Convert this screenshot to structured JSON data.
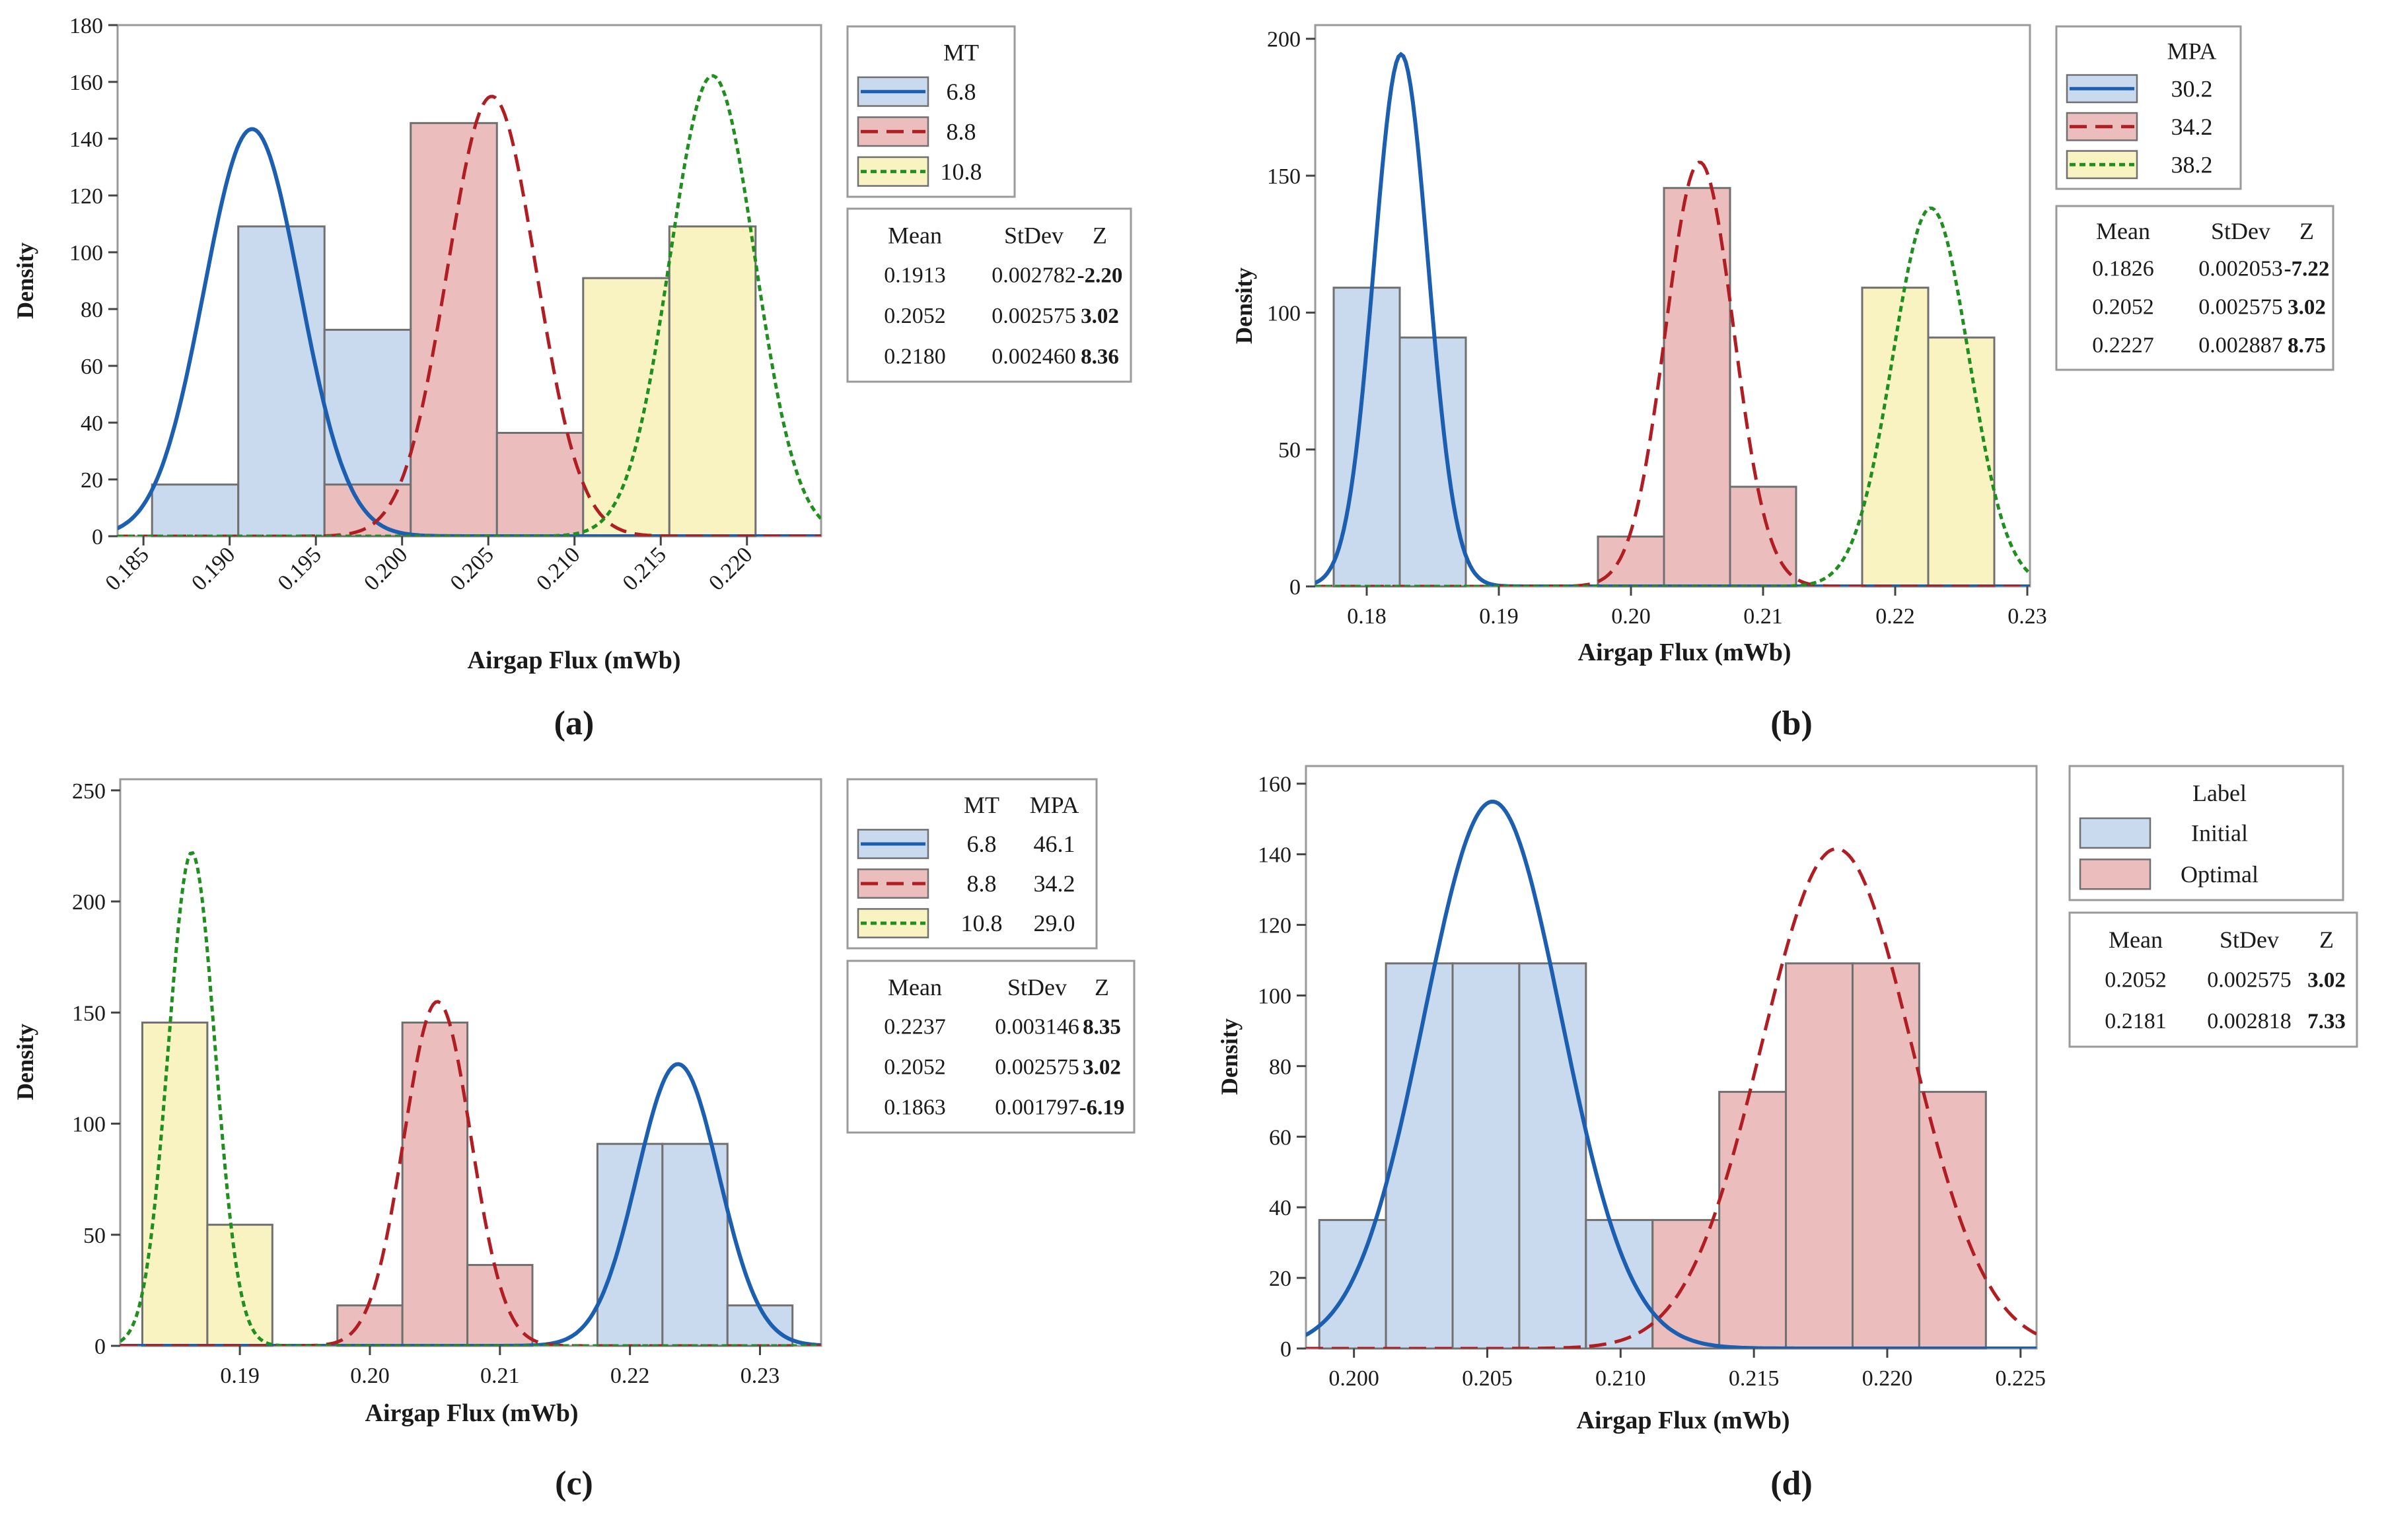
{
  "colors": {
    "blue_fill": "#c9d9ee",
    "blue_line": "#1c5fb0",
    "red_fill": "#ebbebd",
    "red_line": "#b01e23",
    "yellow_fill": "#f8f3c0",
    "green_line": "#1f8f1f",
    "bar_stroke": "#707070",
    "axis": "#444444",
    "frame": "#9a9a9a"
  },
  "chart_data": [
    {
      "type": "bar",
      "panel_label": "(a)",
      "x_axis_title": "Airgap Flux (mWb)",
      "y_axis_title": "Density",
      "x_ticks": [
        "0.185",
        "0.190",
        "0.195",
        "0.200",
        "0.205",
        "0.210",
        "0.215",
        "0.220"
      ],
      "x_tick_values": [
        0.185,
        0.19,
        0.195,
        0.2,
        0.205,
        0.21,
        0.215,
        0.22
      ],
      "y_ticks": [
        "0",
        "20",
        "40",
        "60",
        "80",
        "100",
        "120",
        "140",
        "160",
        "180"
      ],
      "y_tick_values": [
        0,
        20,
        40,
        60,
        80,
        100,
        120,
        140,
        160,
        180
      ],
      "xlim": [
        0.1835,
        0.2243
      ],
      "ylim": [
        0,
        180
      ],
      "rotated_x_ticks": true,
      "series": [
        {
          "name": "6.8",
          "color": "blue",
          "line": "solid",
          "mean": 0.1913,
          "sd": 0.002782,
          "bins": [
            [
              0.1855,
              0.1905,
              18.2
            ],
            [
              0.1905,
              0.1955,
              109.1
            ],
            [
              0.1955,
              0.2005,
              72.7
            ]
          ]
        },
        {
          "name": "8.8",
          "color": "red",
          "line": "dashed",
          "mean": 0.2052,
          "sd": 0.002575,
          "bins": [
            [
              0.1955,
              0.2005,
              18.2
            ],
            [
              0.2005,
              0.2055,
              145.5
            ],
            [
              0.2055,
              0.2105,
              36.4
            ]
          ]
        },
        {
          "name": "10.8",
          "color": "yellow",
          "line": "dotted",
          "mean": 0.218,
          "sd": 0.00246,
          "bins": [
            [
              0.2105,
              0.2155,
              90.9
            ],
            [
              0.2155,
              0.2205,
              109.1
            ]
          ]
        }
      ],
      "legend": {
        "headers": [
          "MT"
        ],
        "entries": [
          {
            "cols": [
              "6.8"
            ],
            "color": "blue",
            "line": "solid"
          },
          {
            "cols": [
              "8.8"
            ],
            "color": "red",
            "line": "dashed"
          },
          {
            "cols": [
              "10.8"
            ],
            "color": "yellow",
            "line": "dotted"
          }
        ]
      },
      "stats": {
        "headers": [
          "Mean",
          "StDev",
          "Z"
        ],
        "rows": [
          [
            "0.1913",
            "0.002782",
            "-2.20"
          ],
          [
            "0.2052",
            "0.002575",
            "3.02"
          ],
          [
            "0.2180",
            "0.002460",
            "8.36"
          ]
        ]
      }
    },
    {
      "type": "bar",
      "panel_label": "(b)",
      "x_axis_title": "Airgap Flux (mWb)",
      "y_axis_title": "Density",
      "x_ticks": [
        "0.18",
        "0.19",
        "0.20",
        "0.21",
        "0.22",
        "0.23"
      ],
      "x_tick_values": [
        0.18,
        0.19,
        0.2,
        0.21,
        0.22,
        0.23
      ],
      "y_ticks": [
        "0",
        "50",
        "100",
        "150",
        "200"
      ],
      "y_tick_values": [
        0,
        50,
        100,
        150,
        200
      ],
      "xlim": [
        0.1761,
        0.2302
      ],
      "ylim": [
        0,
        205
      ],
      "rotated_x_ticks": false,
      "series": [
        {
          "name": "30.2",
          "color": "blue",
          "line": "solid",
          "mean": 0.1826,
          "sd": 0.002053,
          "bins": [
            [
              0.1775,
              0.1825,
              109.1
            ],
            [
              0.1825,
              0.1875,
              90.9
            ]
          ]
        },
        {
          "name": "34.2",
          "color": "red",
          "line": "dashed",
          "mean": 0.2052,
          "sd": 0.002575,
          "bins": [
            [
              0.1975,
              0.2025,
              18.2
            ],
            [
              0.2025,
              0.2075,
              145.5
            ],
            [
              0.2075,
              0.2125,
              36.4
            ]
          ]
        },
        {
          "name": "38.2",
          "color": "yellow",
          "line": "dotted",
          "mean": 0.2227,
          "sd": 0.002887,
          "bins": [
            [
              0.2175,
              0.2225,
              109.1
            ],
            [
              0.2225,
              0.2275,
              90.9
            ]
          ]
        }
      ],
      "legend": {
        "headers": [
          "MPA"
        ],
        "entries": [
          {
            "cols": [
              "30.2"
            ],
            "color": "blue",
            "line": "solid"
          },
          {
            "cols": [
              "34.2"
            ],
            "color": "red",
            "line": "dashed"
          },
          {
            "cols": [
              "38.2"
            ],
            "color": "yellow",
            "line": "dotted"
          }
        ]
      },
      "stats": {
        "headers": [
          "Mean",
          "StDev",
          "Z"
        ],
        "rows": [
          [
            "0.1826",
            "0.002053",
            "-7.22"
          ],
          [
            "0.2052",
            "0.002575",
            "3.02"
          ],
          [
            "0.2227",
            "0.002887",
            "8.75"
          ]
        ]
      }
    },
    {
      "type": "bar",
      "panel_label": "(c)",
      "x_axis_title": "Airgap Flux (mWb)",
      "y_axis_title": "Density",
      "x_ticks": [
        "0.19",
        "0.20",
        "0.21",
        "0.22",
        "0.23"
      ],
      "x_tick_values": [
        0.19,
        0.2,
        0.21,
        0.22,
        0.23
      ],
      "y_ticks": [
        "0",
        "50",
        "100",
        "150",
        "200",
        "250"
      ],
      "y_tick_values": [
        0,
        50,
        100,
        150,
        200,
        250
      ],
      "xlim": [
        0.1808,
        0.2347
      ],
      "ylim": [
        0,
        255
      ],
      "rotated_x_ticks": false,
      "series": [
        {
          "name": "6.8 / 46.1",
          "color": "blue",
          "line": "solid",
          "mean": 0.2237,
          "sd": 0.003146,
          "bins": [
            [
              0.2175,
              0.2225,
              90.9
            ],
            [
              0.2225,
              0.2275,
              90.9
            ],
            [
              0.2275,
              0.2325,
              18.2
            ]
          ]
        },
        {
          "name": "8.8 / 34.2",
          "color": "red",
          "line": "dashed",
          "mean": 0.2052,
          "sd": 0.002575,
          "bins": [
            [
              0.1975,
              0.2025,
              18.2
            ],
            [
              0.2025,
              0.2075,
              145.5
            ],
            [
              0.2075,
              0.2125,
              36.4
            ]
          ]
        },
        {
          "name": "10.8 / 29.0",
          "color": "yellow",
          "line": "dotted",
          "mean": 0.1863,
          "sd": 0.001797,
          "bins": [
            [
              0.1825,
              0.1875,
              145.5
            ],
            [
              0.1875,
              0.1925,
              54.5
            ]
          ]
        }
      ],
      "legend": {
        "headers": [
          "MT",
          "MPA"
        ],
        "entries": [
          {
            "cols": [
              "6.8",
              "46.1"
            ],
            "color": "blue",
            "line": "solid"
          },
          {
            "cols": [
              "8.8",
              "34.2"
            ],
            "color": "red",
            "line": "dashed"
          },
          {
            "cols": [
              "10.8",
              "29.0"
            ],
            "color": "yellow",
            "line": "dotted"
          }
        ]
      },
      "stats": {
        "headers": [
          "Mean",
          "StDev",
          "Z"
        ],
        "rows": [
          [
            "0.2237",
            "0.003146",
            "8.35"
          ],
          [
            "0.2052",
            "0.002575",
            "3.02"
          ],
          [
            "0.1863",
            "0.001797",
            "-6.19"
          ]
        ]
      }
    },
    {
      "type": "bar",
      "panel_label": "(d)",
      "x_axis_title": "Airgap Flux (mWb)",
      "y_axis_title": "Density",
      "x_ticks": [
        "0.200",
        "0.205",
        "0.210",
        "0.215",
        "0.220",
        "0.225"
      ],
      "x_tick_values": [
        0.2,
        0.205,
        0.21,
        0.215,
        0.22,
        0.225
      ],
      "y_ticks": [
        "0",
        "20",
        "40",
        "60",
        "80",
        "100",
        "120",
        "140",
        "160"
      ],
      "y_tick_values": [
        0,
        20,
        40,
        60,
        80,
        100,
        120,
        140,
        160
      ],
      "xlim": [
        0.1982,
        0.2256
      ],
      "ylim": [
        0,
        165
      ],
      "rotated_x_ticks": false,
      "series": [
        {
          "name": "Initial",
          "color": "blue",
          "line": "solid",
          "mean": 0.2052,
          "sd": 0.002575,
          "bins": [
            [
              0.1987,
              0.2012,
              36.4
            ],
            [
              0.2012,
              0.2037,
              109.1
            ],
            [
              0.2037,
              0.2062,
              109.1
            ],
            [
              0.2062,
              0.2087,
              109.1
            ],
            [
              0.2087,
              0.2112,
              36.4
            ]
          ]
        },
        {
          "name": "Optimal",
          "color": "red",
          "line": "dashed",
          "mean": 0.2181,
          "sd": 0.002818,
          "bins": [
            [
              0.2112,
              0.2137,
              36.4
            ],
            [
              0.2137,
              0.2162,
              72.7
            ],
            [
              0.2162,
              0.2187,
              109.1
            ],
            [
              0.2187,
              0.2212,
              109.1
            ],
            [
              0.2212,
              0.2237,
              72.7
            ]
          ]
        }
      ],
      "legend": {
        "headers": [
          "Label"
        ],
        "entries": [
          {
            "cols": [
              "Initial"
            ],
            "color": "blue",
            "line": "fill"
          },
          {
            "cols": [
              "Optimal"
            ],
            "color": "red",
            "line": "fill"
          }
        ]
      },
      "stats": {
        "headers": [
          "Mean",
          "StDev",
          "Z"
        ],
        "rows": [
          [
            "0.2052",
            "0.002575",
            "3.02"
          ],
          [
            "0.2181",
            "0.002818",
            "7.33"
          ]
        ]
      }
    }
  ]
}
